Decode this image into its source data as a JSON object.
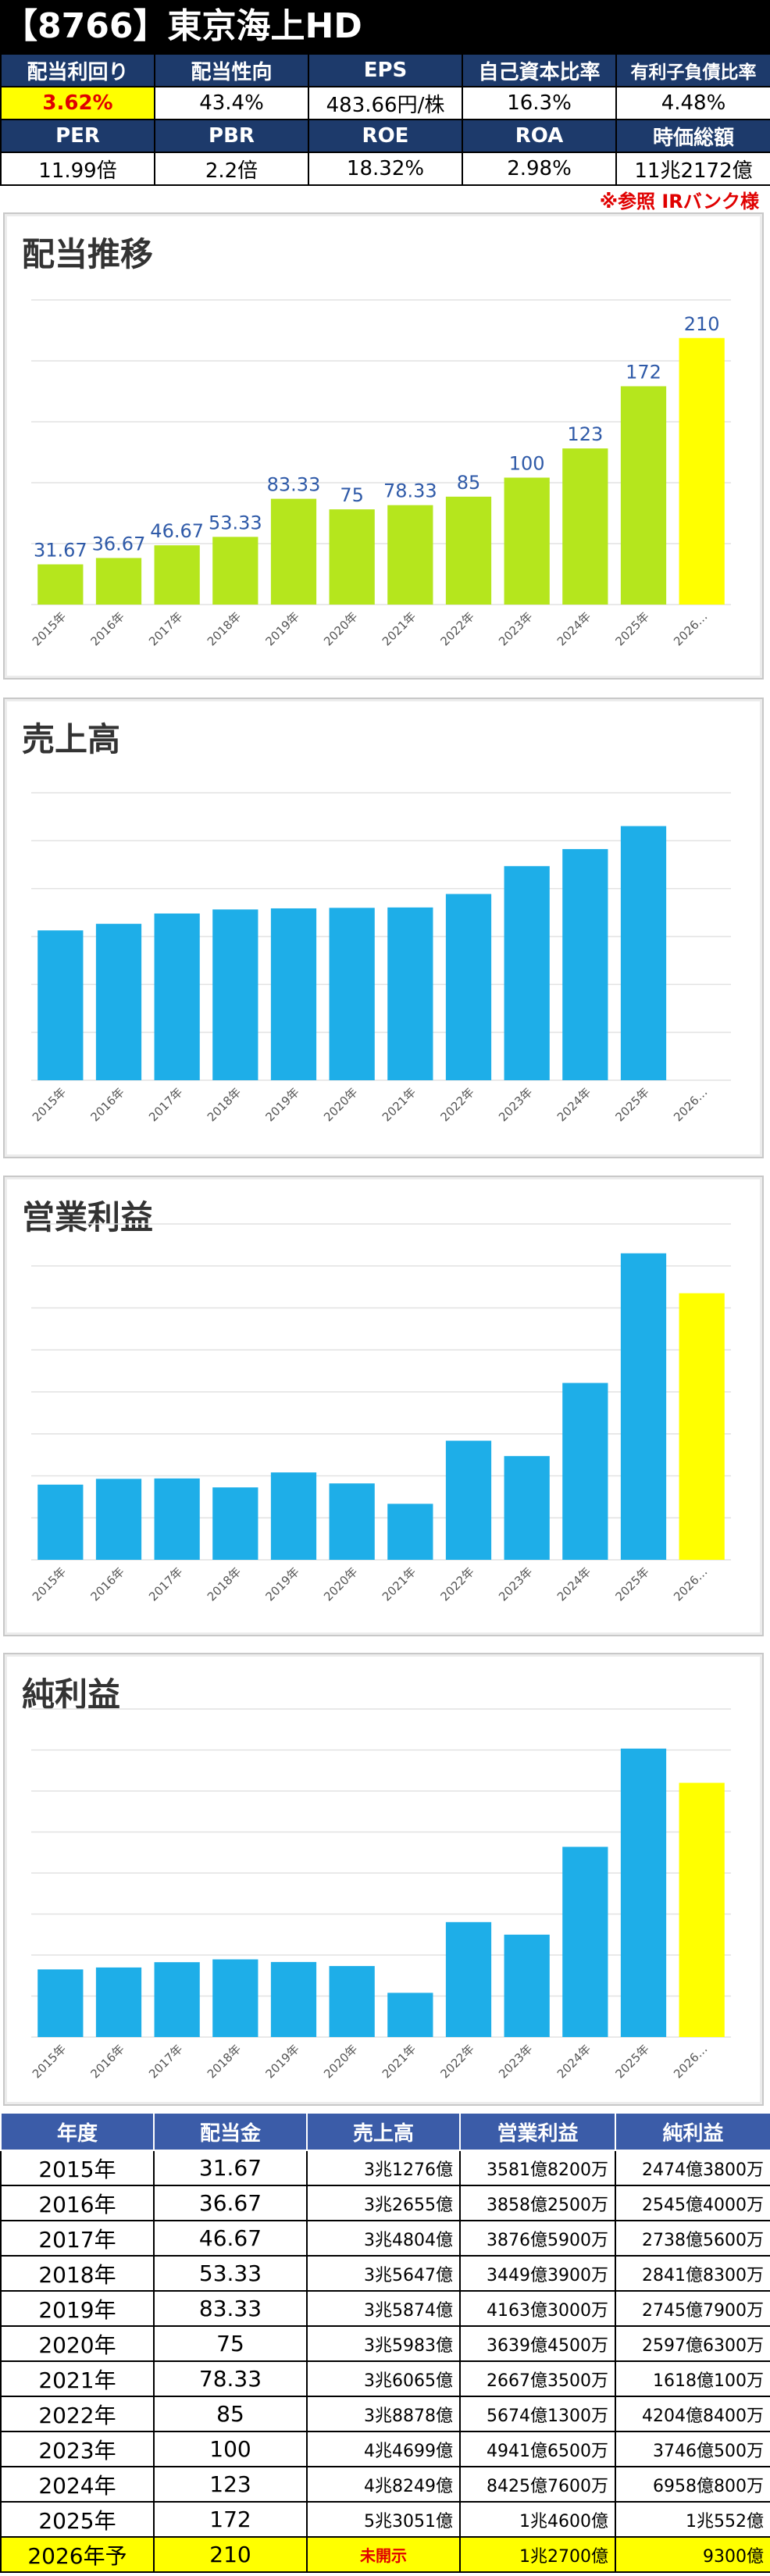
{
  "header": {
    "title": "【8766】東京海上HD"
  },
  "metrics_row1": {
    "labels": [
      "配当利回り",
      "配当性向",
      "EPS",
      "自己資本比率",
      "有利子負債比率"
    ],
    "values": [
      "3.62%",
      "43.4%",
      "483.66円/株",
      "16.3%",
      "4.48%"
    ]
  },
  "metrics_row2": {
    "labels": [
      "PER",
      "PBR",
      "ROE",
      "ROA",
      "時価総額"
    ],
    "values": [
      "11.99倍",
      "2.2倍",
      "18.32%",
      "2.98%",
      "11兆2172億"
    ]
  },
  "note": "※参照 IRバンク様",
  "colors": {
    "green": "#b5e61d",
    "yellow": "#ffff00",
    "blue": "#1eaee8",
    "label_blue": "#2f5aa8",
    "header_navy": "#1d3a6b",
    "table_header": "#3b5ca8"
  },
  "chart_data": [
    {
      "type": "bar",
      "title": "配当推移",
      "categories": [
        "2015年",
        "2016年",
        "2017年",
        "2018年",
        "2019年",
        "2020年",
        "2021年",
        "2022年",
        "2023年",
        "2024年",
        "2025年",
        "2026年予"
      ],
      "values": [
        31.67,
        36.67,
        46.67,
        53.33,
        83.33,
        75,
        78.33,
        85,
        100,
        123,
        172,
        210
      ],
      "data_labels": [
        "31.67",
        "36.67",
        "46.67",
        "53.33",
        "83.33",
        "75",
        "78.33",
        "85",
        "100",
        "123",
        "172",
        "210"
      ],
      "ylim": [
        0,
        240
      ]
    },
    {
      "type": "bar",
      "title": "売上高",
      "categories": [
        "2015年",
        "2016年",
        "2017年",
        "2018年",
        "2019年",
        "2020年",
        "2021年",
        "2022年",
        "2023年",
        "2024年",
        "2025年",
        "2026年予"
      ],
      "values": [
        3.1276,
        3.2655,
        3.4804,
        3.5647,
        3.5874,
        3.5983,
        3.6065,
        3.8878,
        4.4699,
        4.8249,
        5.3051,
        null
      ],
      "unit": "兆円",
      "ylim": [
        0,
        6
      ]
    },
    {
      "type": "bar",
      "title": "営業利益",
      "categories": [
        "2015年",
        "2016年",
        "2017年",
        "2018年",
        "2019年",
        "2020年",
        "2021年",
        "2022年",
        "2023年",
        "2024年",
        "2025年",
        "2026年予"
      ],
      "values": [
        3581.82,
        3858.25,
        3876.59,
        3449.39,
        4163.3,
        3639.45,
        2667.35,
        5674.13,
        4941.65,
        8425.76,
        14600,
        12700
      ],
      "unit": "億円",
      "ylim": [
        0,
        16000
      ]
    },
    {
      "type": "bar",
      "title": "純利益",
      "categories": [
        "2015年",
        "2016年",
        "2017年",
        "2018年",
        "2019年",
        "2020年",
        "2021年",
        "2022年",
        "2023年",
        "2024年",
        "2025年",
        "2026年予"
      ],
      "values": [
        2474.38,
        2545.4,
        2738.56,
        2841.83,
        2745.79,
        2597.63,
        1618.01,
        4204.84,
        3746.05,
        6958.08,
        10552,
        9300
      ],
      "unit": "億円",
      "ylim": [
        0,
        12000
      ]
    }
  ],
  "table": {
    "headers": [
      "年度",
      "配当金",
      "売上高",
      "営業利益",
      "純利益"
    ],
    "rows": [
      [
        "2015年",
        "31.67",
        "3兆1276億",
        "3581億8200万",
        "2474億3800万"
      ],
      [
        "2016年",
        "36.67",
        "3兆2655億",
        "3858億2500万",
        "2545億4000万"
      ],
      [
        "2017年",
        "46.67",
        "3兆4804億",
        "3876億5900万",
        "2738億5600万"
      ],
      [
        "2018年",
        "53.33",
        "3兆5647億",
        "3449億3900万",
        "2841億8300万"
      ],
      [
        "2019年",
        "83.33",
        "3兆5874億",
        "4163億3000万",
        "2745億7900万"
      ],
      [
        "2020年",
        "75",
        "3兆5983億",
        "3639億4500万",
        "2597億6300万"
      ],
      [
        "2021年",
        "78.33",
        "3兆6065億",
        "2667億3500万",
        "1618億100万"
      ],
      [
        "2022年",
        "85",
        "3兆8878億",
        "5674億1300万",
        "4204億8400万"
      ],
      [
        "2023年",
        "100",
        "4兆4699億",
        "4941億6500万",
        "3746億500万"
      ],
      [
        "2024年",
        "123",
        "4兆8249億",
        "8425億7600万",
        "6958億800万"
      ],
      [
        "2025年",
        "172",
        "5兆3051億",
        "1兆4600億",
        "1兆552億"
      ]
    ],
    "forecast": [
      "2026年予",
      "210",
      "未開示",
      "1兆2700億",
      "9300億"
    ]
  }
}
